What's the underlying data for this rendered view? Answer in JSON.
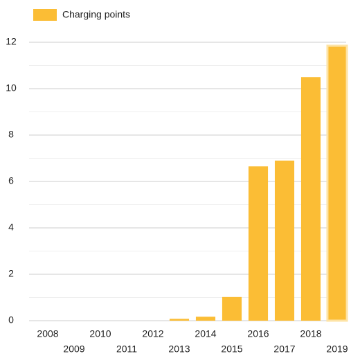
{
  "chart_data": {
    "type": "bar",
    "series": [
      {
        "name": "Charging points",
        "color": "#fbbd35",
        "values": [
          0,
          0,
          0,
          0,
          0,
          0.08,
          0.17,
          1.02,
          6.65,
          6.9,
          10.5,
          11.85
        ]
      }
    ],
    "categories": [
      "2008",
      "2009",
      "2010",
      "2011",
      "2012",
      "2013",
      "2014",
      "2015",
      "2016",
      "2017",
      "2018",
      "2019"
    ],
    "ylim": [
      0,
      12
    ],
    "yticks": [
      0,
      2,
      4,
      6,
      8,
      10,
      12
    ],
    "minor_yticks": [
      1,
      3,
      5,
      7,
      9,
      11
    ],
    "grid": true,
    "legend": "top-left"
  }
}
